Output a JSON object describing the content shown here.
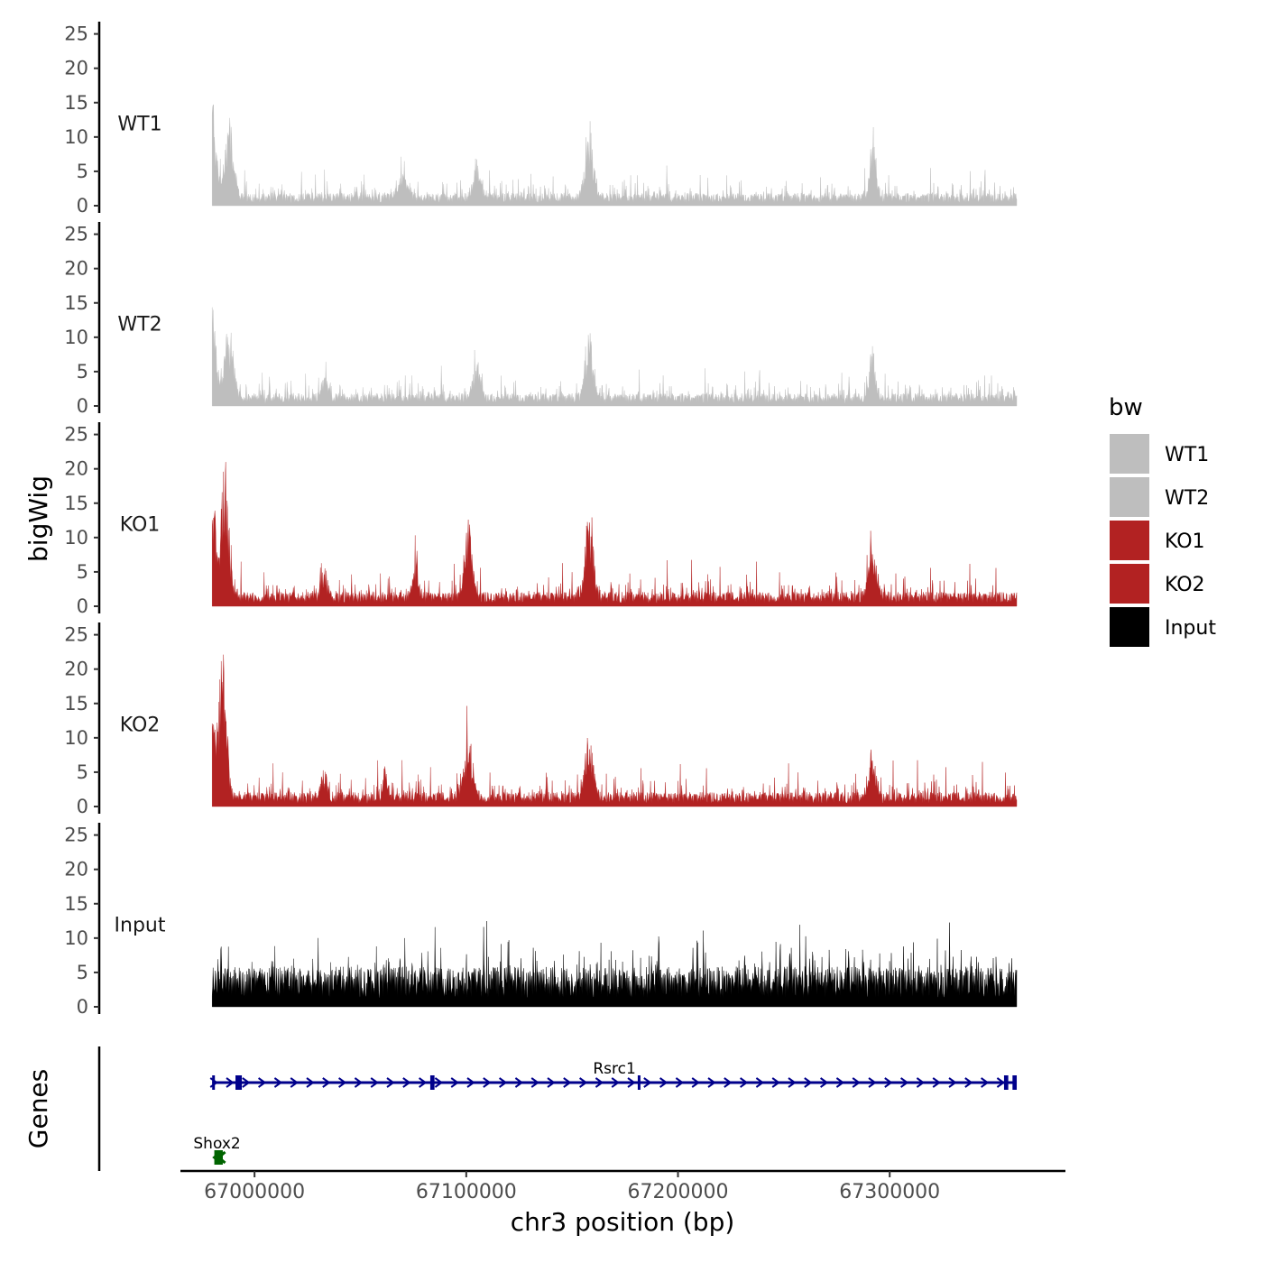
{
  "chart_data": {
    "type": "area",
    "title": "",
    "xlabel": "chr3 position (bp)",
    "ylabel": "bigWig",
    "genes_label": "Genes",
    "xlim": [
      66965000,
      67383000
    ],
    "x_ticks": [
      67000000,
      67100000,
      67200000,
      67300000
    ],
    "x_tick_labels": [
      "67000000",
      "67100000",
      "67200000",
      "67300000"
    ],
    "data_range": [
      66980000,
      67360000
    ],
    "ylim": [
      0,
      26
    ],
    "y_ticks": [
      0,
      5,
      10,
      15,
      20,
      25
    ],
    "y_tick_labels": [
      "0",
      "5",
      "10",
      "15",
      "20",
      "25"
    ],
    "series": [
      {
        "name": "WT1",
        "color": "#bebebe",
        "baseline": 1.4,
        "noise": 4.5,
        "peaks": [
          [
            66980000,
            12.5,
            2500
          ],
          [
            66988000,
            9.0,
            3000
          ],
          [
            67158000,
            10.0,
            2500
          ],
          [
            67292000,
            8.0,
            2000
          ],
          [
            67105000,
            4.0,
            2500
          ],
          [
            67070000,
            3.0,
            3000
          ]
        ]
      },
      {
        "name": "WT2",
        "color": "#bebebe",
        "baseline": 1.4,
        "noise": 4.5,
        "peaks": [
          [
            66980000,
            12.0,
            2500
          ],
          [
            66988000,
            8.5,
            3000
          ],
          [
            67158000,
            8.0,
            2500
          ],
          [
            67292000,
            6.0,
            2000
          ],
          [
            67105000,
            4.0,
            2500
          ],
          [
            67033000,
            3.0,
            2000
          ]
        ]
      },
      {
        "name": "KO1",
        "color": "#b22222",
        "baseline": 1.6,
        "noise": 5.0,
        "peaks": [
          [
            66980000,
            14.0,
            2000
          ],
          [
            66986000,
            18.0,
            2500
          ],
          [
            67158000,
            11.0,
            2500
          ],
          [
            67101000,
            9.0,
            2500
          ],
          [
            67292000,
            7.5,
            2500
          ],
          [
            67076000,
            4.0,
            2000
          ],
          [
            67033000,
            3.0,
            2000
          ]
        ]
      },
      {
        "name": "KO2",
        "color": "#b22222",
        "baseline": 1.6,
        "noise": 5.0,
        "peaks": [
          [
            66980000,
            10.0,
            2000
          ],
          [
            66985000,
            19.0,
            2500
          ],
          [
            67158000,
            9.0,
            2500
          ],
          [
            67101000,
            7.0,
            3000
          ],
          [
            67292000,
            7.0,
            2000
          ],
          [
            67062000,
            4.0,
            1500
          ],
          [
            67033000,
            3.0,
            2000
          ]
        ]
      },
      {
        "name": "Input",
        "color": "#000000",
        "baseline": 4.5,
        "noise": 8.0,
        "peaks": []
      }
    ],
    "legend": {
      "title": "bw",
      "entries": [
        {
          "label": "WT1",
          "color": "#bebebe"
        },
        {
          "label": "WT2",
          "color": "#bebebe"
        },
        {
          "label": "KO1",
          "color": "#b22222"
        },
        {
          "label": "KO2",
          "color": "#b22222"
        },
        {
          "label": "Input",
          "color": "#000000"
        }
      ]
    },
    "genes": [
      {
        "name": "Rsrc1",
        "strand": "+",
        "start": 66980000,
        "end": 67360000,
        "color": "#00008b",
        "exons": [
          [
            66980000,
            66981000
          ],
          [
            66991000,
            66994000
          ],
          [
            67083000,
            67085000
          ],
          [
            67181000,
            67182000
          ],
          [
            67354000,
            67356000
          ],
          [
            67358000,
            67360000
          ]
        ]
      },
      {
        "name": "Shox2",
        "strand": "-",
        "start": 66981000,
        "end": 66985000,
        "color": "#006400",
        "exons": [
          [
            66981000,
            66985000
          ]
        ]
      }
    ]
  }
}
